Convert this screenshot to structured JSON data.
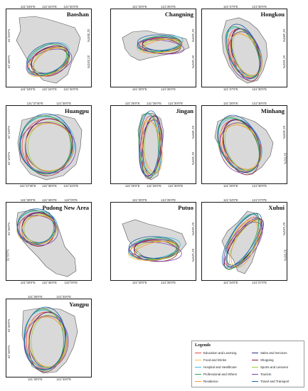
{
  "panels": [
    {
      "name": "Baoshan",
      "ticks_top": [
        "121°18'0\"E",
        "121°24'0\"E",
        "121°30'0\"E"
      ],
      "ticks_bottom": [
        "121°18'0\"E",
        "121°24'0\"E",
        "121°30'0\"E"
      ],
      "ticks_left": [
        "31°24'0\"N",
        "31°18'0\"N"
      ],
      "ticks_right": [
        "31°30'0\"N",
        "31°24'0\"N"
      ]
    },
    {
      "name": "Changning",
      "ticks_top": [
        "121°20'0\"E",
        "121°25'0\"E"
      ],
      "ticks_bottom": [
        "121°20'0\"E",
        "121°25'0\"E"
      ],
      "ticks_left": [],
      "ticks_right": [
        "31°15'0\"N",
        "31°10'0\"N"
      ]
    },
    {
      "name": "Hongkou",
      "ticks_top": [
        "121°27'0\"E",
        "121°30'0\"E"
      ],
      "ticks_bottom": [
        "121°27'0\"E",
        "121°30'0\"E"
      ],
      "ticks_left": [],
      "ticks_right": [
        "31°18'0\"N",
        "31°15'0\"N"
      ]
    },
    {
      "name": "Huangpu",
      "ticks_top": [
        "121°27'30\"E",
        "121°30'0\"E"
      ],
      "ticks_bottom": [
        "121°27'30\"E",
        "121°30'0\"E",
        "121°32'0\"E"
      ],
      "ticks_left": [
        "31°13'0\"N",
        "31°12'0\"N"
      ],
      "ticks_right": []
    },
    {
      "name": "Jingan",
      "ticks_top": [
        "121°20'0\"E",
        "121°25'0\"E",
        "121°30'0\"E"
      ],
      "ticks_bottom": [
        "121°20'0\"E",
        "121°25'0\"E",
        "121°30'0\"E"
      ],
      "ticks_left": [],
      "ticks_right": [
        "31°18'0\"N",
        "31°15'0\"N"
      ]
    },
    {
      "name": "Minhang",
      "ticks_top": [
        "121°20'0\"E",
        "121°30'0\"E"
      ],
      "ticks_bottom": [
        "121°20'0\"E",
        "121°30'0\"E"
      ],
      "ticks_left": [],
      "ticks_right": [
        "31°10'0\"N",
        "31°5'0\"N"
      ]
    },
    {
      "name": "Pudong New Area",
      "ticks_top": [
        "121°30'0\"E",
        "121°45'0\"E",
        "122°0'0\"E"
      ],
      "ticks_bottom": [
        "121°30'0\"E",
        "121°45'0\"E",
        "122°0'0\"E"
      ],
      "ticks_left": [
        "31°15'0\"N",
        "31°0'0\"N"
      ],
      "ticks_right": []
    },
    {
      "name": "Putuo",
      "ticks_top": [
        "121°20'0\"E",
        "121°25'0\"E"
      ],
      "ticks_bottom": [
        "121°20'0\"E",
        "121°25'0\"E"
      ],
      "ticks_left": [],
      "ticks_right": [
        "31°15'0\"N",
        "31°12'0\"N"
      ]
    },
    {
      "name": "Xuhui",
      "ticks_top": [
        "121°24'0\"E",
        "121°27'0\"E"
      ],
      "ticks_bottom": [
        "121°24'0\"E",
        "121°27'0\"E"
      ],
      "ticks_left": [],
      "ticks_right": [
        "31°12'0\"N",
        "31°9'0\"N"
      ]
    },
    {
      "name": "Yangpu",
      "ticks_top": [
        "121°30'0\"E",
        "121°33'0\"E"
      ],
      "ticks_bottom": [
        "121°30'0\"E",
        "121°33'0\"E"
      ],
      "ticks_left": [
        "31°20'0\"N",
        "31°15'0\"N"
      ],
      "ticks_right": []
    }
  ],
  "legend": {
    "title": "Legends",
    "items": [
      {
        "label": "Education and Learning",
        "color": "#e8464b"
      },
      {
        "label": "Sales and Services",
        "color": "#2a2a8c"
      },
      {
        "label": "Food and Drinks",
        "color": "#f0c24a"
      },
      {
        "label": "Shopping",
        "color": "#8b1a2e"
      },
      {
        "label": "Hospital and Healthcare",
        "color": "#3fb7d6"
      },
      {
        "label": "Sports and Leisures",
        "color": "#9acd32"
      },
      {
        "label": "Professional and Others",
        "color": "#27a64a"
      },
      {
        "label": "Tourism",
        "color": "#7a3fb0"
      },
      {
        "label": "Residence",
        "color": "#f29a3a"
      },
      {
        "label": "Travel and Transport",
        "color": "#1d5fa8"
      }
    ]
  }
}
